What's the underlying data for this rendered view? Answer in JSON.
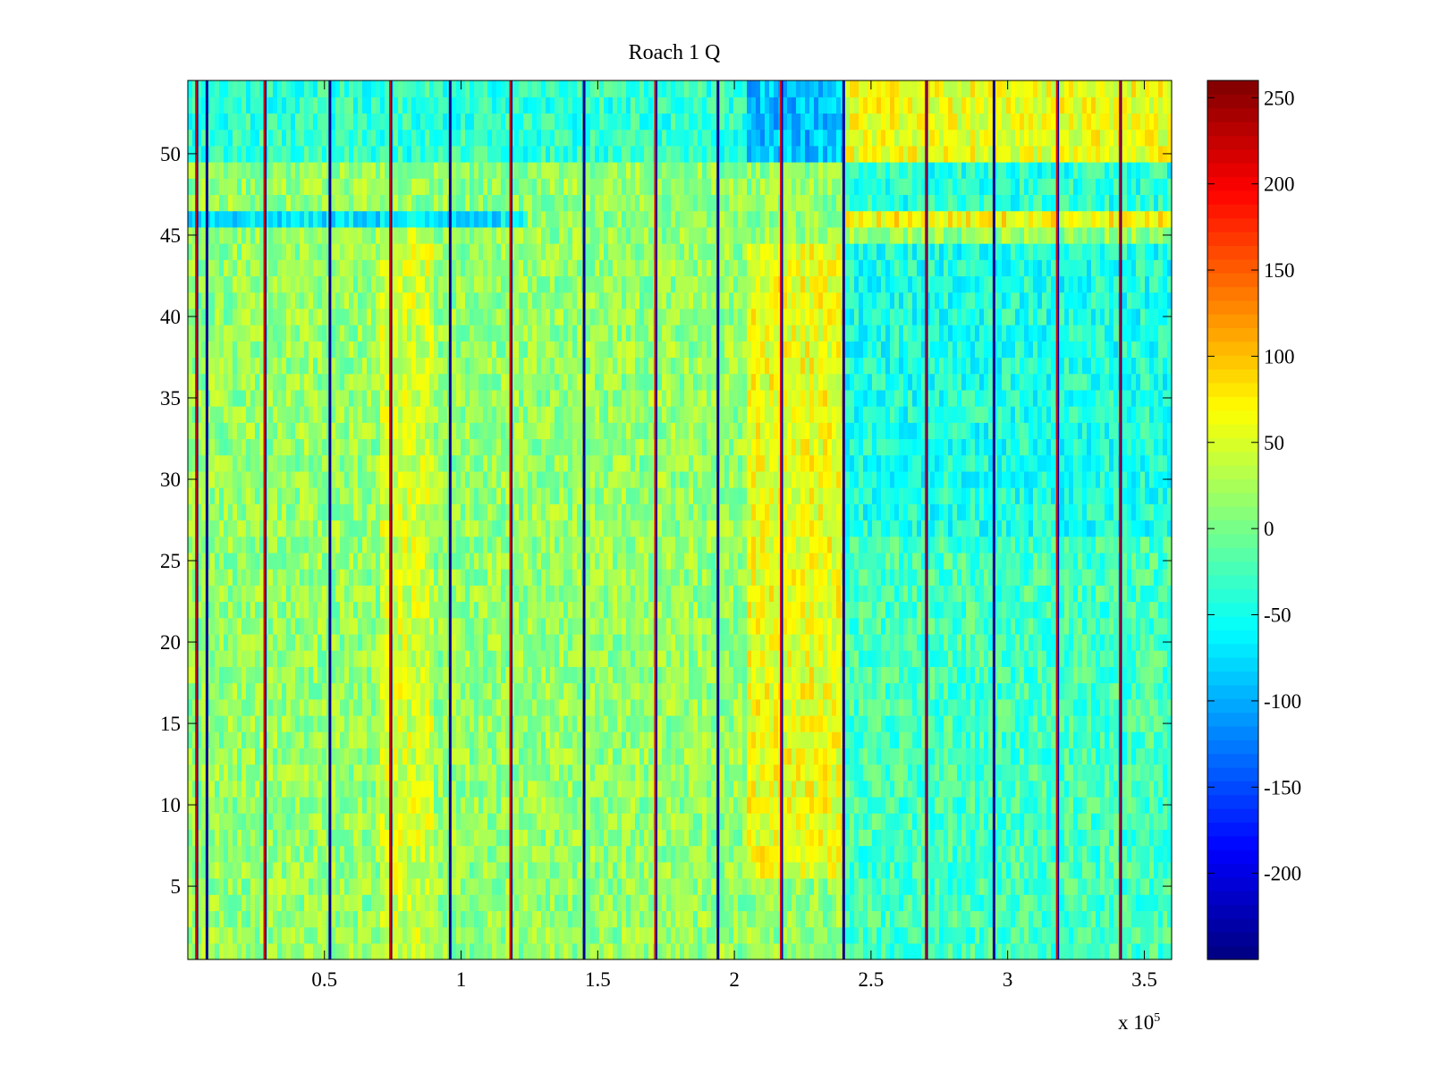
{
  "chart_data": {
    "type": "heatmap",
    "title": "Roach 1 Q",
    "xlabel": "",
    "ylabel": "",
    "x_range": [
      0,
      360000
    ],
    "y_range": [
      0.5,
      54.5
    ],
    "x_ticks": [
      50000,
      100000,
      150000,
      200000,
      250000,
      300000,
      350000
    ],
    "x_tick_labels": [
      "0.5",
      "1",
      "1.5",
      "2",
      "2.5",
      "3",
      "3.5"
    ],
    "x_multiplier_label": "x 10",
    "x_multiplier_exponent": "5",
    "y_ticks": [
      5,
      10,
      15,
      20,
      25,
      30,
      35,
      40,
      45,
      50
    ],
    "y_tick_labels": [
      "5",
      "10",
      "15",
      "20",
      "25",
      "30",
      "35",
      "40",
      "45",
      "50"
    ],
    "rows": 54,
    "colormap": "jet",
    "colorbar": {
      "range": [
        -250,
        260
      ],
      "ticks": [
        250,
        200,
        150,
        100,
        50,
        0,
        -50,
        -100,
        -150,
        -200
      ],
      "tick_labels": [
        "250",
        "200",
        "150",
        "100",
        "50",
        "0",
        "-50",
        "-100",
        "-150",
        "-200"
      ]
    },
    "regions": [
      {
        "x": [
          0,
          240000
        ],
        "y": [
          0.5,
          54.5
        ],
        "mean_value": 15,
        "note": "mostly green-yellow"
      },
      {
        "x": [
          70000,
          90000
        ],
        "y": [
          0.5,
          46
        ],
        "mean_value": 45
      },
      {
        "x": [
          205000,
          240000
        ],
        "y": [
          6,
          45
        ],
        "mean_value": 60,
        "note": "yellow-orange band"
      },
      {
        "x": [
          240000,
          360000
        ],
        "y": [
          0.5,
          27
        ],
        "mean_value": -25
      },
      {
        "x": [
          240000,
          360000
        ],
        "y": [
          27,
          45
        ],
        "mean_value": -45
      },
      {
        "x": [
          240000,
          360000
        ],
        "y": [
          46,
          47
        ],
        "mean_value": 70
      },
      {
        "x": [
          240000,
          360000
        ],
        "y": [
          47,
          49.5
        ],
        "mean_value": -40
      },
      {
        "x": [
          240000,
          360000
        ],
        "y": [
          49.5,
          54.5
        ],
        "mean_value": 60
      },
      {
        "x": [
          0,
          240000
        ],
        "y": [
          49.5,
          54.5
        ],
        "mean_value": -35
      },
      {
        "x": [
          0,
          125000
        ],
        "y": [
          46,
          47
        ],
        "mean_value": -70
      },
      {
        "x": [
          205000,
          240000
        ],
        "y": [
          49.5,
          54.5
        ],
        "mean_value": -90
      }
    ],
    "vertical_lines": [
      {
        "x": 3000,
        "kind": "red"
      },
      {
        "x": 7000,
        "kind": "blue"
      },
      {
        "x": 28000,
        "kind": "red"
      },
      {
        "x": 52000,
        "kind": "blue"
      },
      {
        "x": 74000,
        "kind": "red"
      },
      {
        "x": 96000,
        "kind": "blue"
      },
      {
        "x": 118000,
        "kind": "red"
      },
      {
        "x": 145000,
        "kind": "blue"
      },
      {
        "x": 171000,
        "kind": "red"
      },
      {
        "x": 194000,
        "kind": "blue"
      },
      {
        "x": 217000,
        "kind": "red"
      },
      {
        "x": 240000,
        "kind": "blue"
      },
      {
        "x": 270000,
        "kind": "red"
      },
      {
        "x": 295000,
        "kind": "blue"
      },
      {
        "x": 318000,
        "kind": "red"
      },
      {
        "x": 341000,
        "kind": "red"
      }
    ]
  }
}
